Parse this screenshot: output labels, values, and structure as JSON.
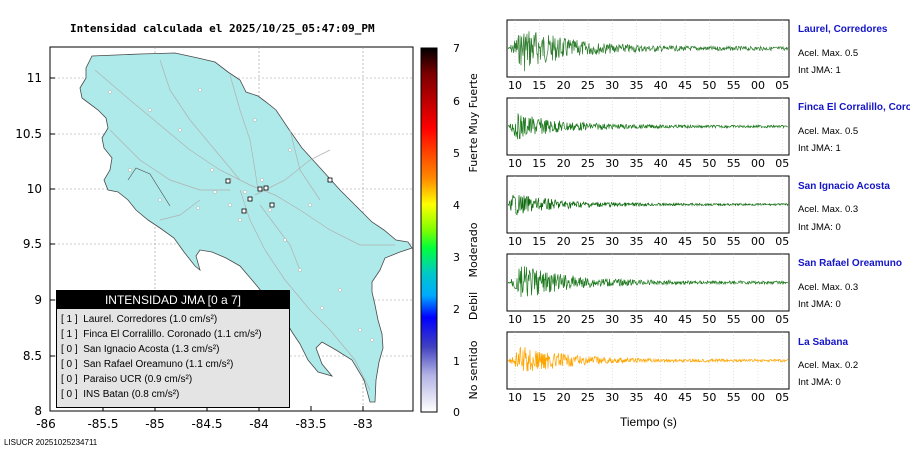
{
  "map": {
    "title": "Intensidad calculada el 2025/10/25_05:47:09_PM",
    "footer_id": "LISUCR 20251025234711",
    "x_ticks": [
      "-86",
      "-85.5",
      "-85",
      "-84.5",
      "-84",
      "-83.5",
      "-83"
    ],
    "y_ticks": [
      "11",
      "10.5",
      "10",
      "9.5",
      "9",
      "8.5",
      "8"
    ],
    "land_color": "#aeeaea",
    "legend": {
      "title": "INTENSIDAD JMA [0 a 7]",
      "items": [
        {
          "level": "[ 1 ]",
          "text": "Laurel. Corredores (1.0 cm/s²)"
        },
        {
          "level": "[ 1 ]",
          "text": "Finca El Corralillo. Coronado (1.1 cm/s²)"
        },
        {
          "level": "[ 0 ]",
          "text": "San Ignacio Acosta (1.3 cm/s²)"
        },
        {
          "level": "[ 0 ]",
          "text": "San Rafael Oreamuno (1.1 cm/s²)"
        },
        {
          "level": "[ 0 ]",
          "text": "Paraiso UCR (0.9 cm/s²)"
        },
        {
          "level": "[ 0 ]",
          "text": "INS Batan (0.8 cm/s²)"
        }
      ]
    }
  },
  "scale": {
    "ticks": [
      "7",
      "6",
      "5",
      "4",
      "3",
      "2",
      "1",
      "0"
    ],
    "labels": [
      "Muy Fuerte",
      "Fuerte",
      "Moderado",
      "Debil",
      "No sentido"
    ],
    "colors": [
      "#000000",
      "#7a0000",
      "#ff0000",
      "#ff8c00",
      "#ffff00",
      "#7fff00",
      "#00ff3c",
      "#00c8c8",
      "#00aaff",
      "#0000ff",
      "#4040c0",
      "#b4b4e6",
      "#ffffff"
    ]
  },
  "waveforms": {
    "x_ticks": [
      "10",
      "15",
      "20",
      "25",
      "30",
      "35",
      "40",
      "45",
      "50",
      "55",
      "00",
      "05"
    ],
    "x_title": "Tiempo (s)",
    "stations": [
      {
        "name": "Laurel, Corredores",
        "acel": "Acel. Max. 0.5",
        "int": "Int JMA: 1",
        "color": "#2e7d2e"
      },
      {
        "name": "Finca El Corralillo, Coronado",
        "acel": "Acel. Max. 0.5",
        "int": "Int JMA: 1",
        "color": "#1e7a1e"
      },
      {
        "name": "San Ignacio Acosta",
        "acel": "Acel. Max. 0.3",
        "int": "Int JMA: 0",
        "color": "#0e6a0e"
      },
      {
        "name": "San Rafael Oreamuno",
        "acel": "Acel. Max. 0.3",
        "int": "Int JMA: 0",
        "color": "#1e7a1e"
      },
      {
        "name": "La Sabana",
        "acel": "Acel. Max. 0.2",
        "int": "Int JMA: 0",
        "color": "#ffa500"
      }
    ]
  }
}
